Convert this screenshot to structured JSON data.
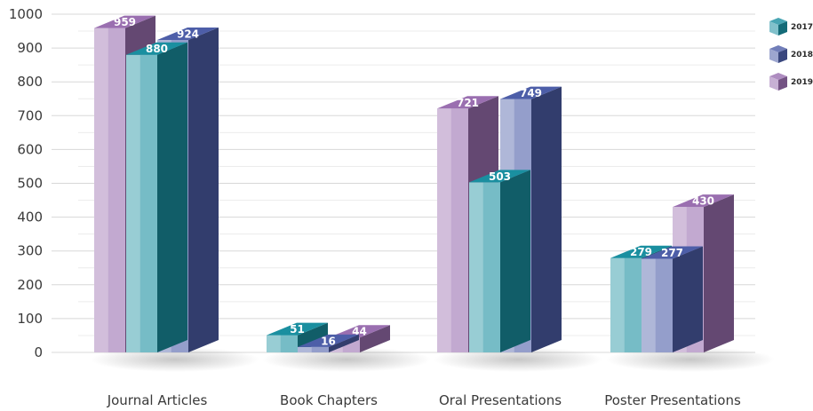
{
  "chart_data": {
    "type": "bar",
    "categories": [
      "Journal Articles",
      "Book Chapters",
      "Oral Presentations",
      "Poster Presentations"
    ],
    "series": [
      {
        "name": "2017",
        "values": [
          880,
          51,
          503,
          279
        ],
        "color": "#1a8fa0"
      },
      {
        "name": "2018",
        "values": [
          924,
          16,
          749,
          277
        ],
        "color": "#4d5ea8"
      },
      {
        "name": "2019",
        "values": [
          959,
          44,
          721,
          430
        ],
        "color": "#9a6fb0"
      }
    ],
    "y_ticks": [
      "0",
      "100",
      "200",
      "300",
      "400",
      "500",
      "600",
      "700",
      "800",
      "900",
      "1000"
    ],
    "ylim": [
      0,
      1000
    ],
    "grid": true,
    "legend_position": "top-right",
    "style": "3d-bars"
  }
}
